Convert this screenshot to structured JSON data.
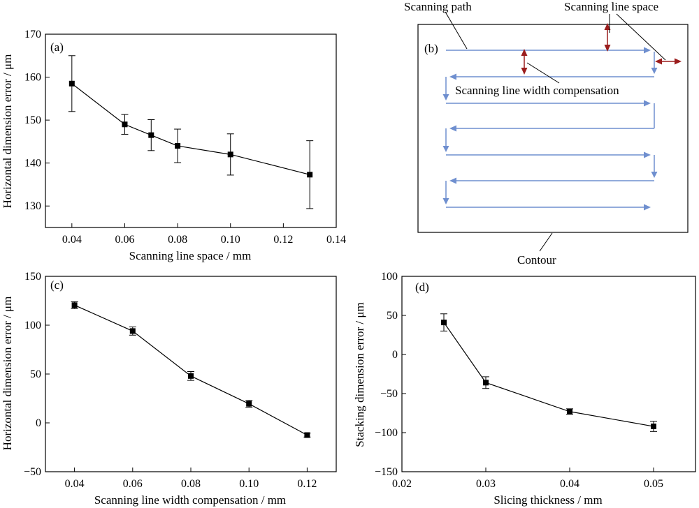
{
  "colors": {
    "path": "#6f8fcf",
    "arrow": "#9b1d1d",
    "axis": "#000000",
    "marker": "#000000"
  },
  "chart_data": [
    {
      "panel": "(a)",
      "type": "line",
      "xlabel": "Scanning line space / mm",
      "ylabel": "Horizontal dimension error / μm",
      "xlim": [
        0.03,
        0.14
      ],
      "ylim": [
        125,
        170
      ],
      "xticks": [
        "0.04",
        "0.06",
        "0.08",
        "0.10",
        "0.12",
        "0.14"
      ],
      "yticks": [
        "130",
        "140",
        "150",
        "160",
        "170"
      ],
      "x": [
        0.04,
        0.06,
        0.07,
        0.08,
        0.1,
        0.13
      ],
      "y": [
        158.5,
        149,
        146.5,
        144,
        142,
        137.3
      ],
      "err": [
        6.5,
        2.3,
        3.6,
        3.9,
        4.8,
        7.9
      ]
    },
    {
      "panel": "(c)",
      "type": "line",
      "xlabel": "Scanning line width compensation / mm",
      "ylabel": "Horizontal dimension error / μm",
      "xlim": [
        0.03,
        0.13
      ],
      "ylim": [
        -50,
        150
      ],
      "xticks": [
        "0.04",
        "0.06",
        "0.08",
        "0.10",
        "0.12"
      ],
      "yticks": [
        "−50",
        "0",
        "50",
        "100",
        "150"
      ],
      "x": [
        0.04,
        0.06,
        0.08,
        0.1,
        0.12
      ],
      "y": [
        120.5,
        94,
        48,
        19.5,
        -12.5
      ],
      "err": [
        3.5,
        4.2,
        4.5,
        3.5,
        2
      ]
    },
    {
      "panel": "(d)",
      "type": "line",
      "xlabel": "Slicing thickness / mm",
      "ylabel": "Stacking dimension error / μm",
      "xlim": [
        0.02,
        0.055
      ],
      "ylim": [
        -150,
        100
      ],
      "xticks": [
        "0.02",
        "0.03",
        "0.04",
        "0.05"
      ],
      "yticks": [
        "−150",
        "−100",
        "−50",
        "0",
        "50",
        "100"
      ],
      "x": [
        0.025,
        0.03,
        0.04,
        0.05
      ],
      "y": [
        41,
        -36,
        -73,
        -92
      ],
      "err": [
        11,
        7.5,
        3.5,
        6.5
      ]
    }
  ],
  "diagram": {
    "panel": "(b)",
    "labels": {
      "scanning_path": "Scanning path",
      "scanning_line_space": "Scanning line space",
      "width_compensation": "Scanning line width compensation",
      "contour": "Contour"
    }
  }
}
